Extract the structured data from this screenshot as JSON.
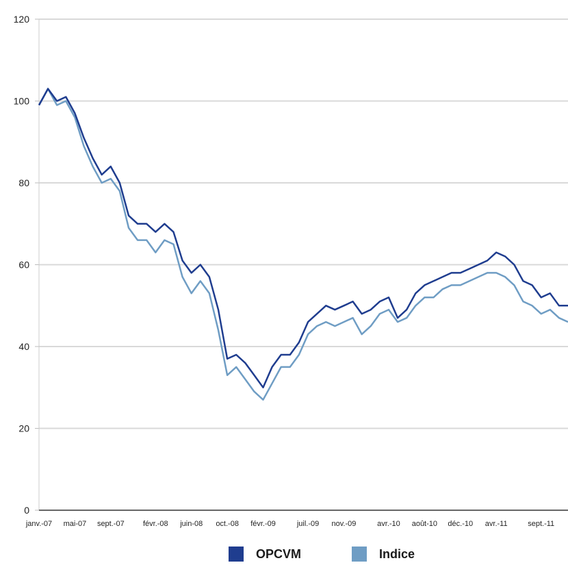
{
  "chart_data": {
    "type": "line",
    "title": "",
    "xlabel": "",
    "ylabel": "",
    "ylim": [
      0,
      120
    ],
    "yticks": [
      "0",
      "20",
      "40",
      "60",
      "80",
      "100",
      "120"
    ],
    "xticks": [
      "janv.-07",
      "mai-07",
      "sept.-07",
      "févr.-08",
      "juin-08",
      "oct.-08",
      "févr.-09",
      "juil.-09",
      "nov.-09",
      "avr.-10",
      "août-10",
      "déc.-10",
      "avr.-11",
      "sept.-11"
    ],
    "grid": true,
    "legend_position": "bottom",
    "x": [
      "janv.-07",
      "févr.-07",
      "mars-07",
      "avr.-07",
      "mai-07",
      "juin-07",
      "juil.-07",
      "août-07",
      "sept.-07",
      "oct.-07",
      "nov.-07",
      "déc.-07",
      "janv.-08",
      "févr.-08",
      "mars-08",
      "avr.-08",
      "mai-08",
      "juin-08",
      "juil.-08",
      "août-08",
      "sept.-08",
      "oct.-08",
      "nov.-08",
      "déc.-08",
      "janv.-09",
      "févr.-09",
      "mars-09",
      "avr.-09",
      "mai-09",
      "juin-09",
      "juil.-09",
      "août-09",
      "sept.-09",
      "oct.-09",
      "nov.-09",
      "déc.-09",
      "janv.-10",
      "févr.-10",
      "mars-10",
      "avr.-10",
      "mai-10",
      "juin-10",
      "juil.-10",
      "août-10",
      "sept.-10",
      "oct.-10",
      "nov.-10",
      "déc.-10",
      "janv.-11",
      "févr.-11",
      "mars-11",
      "avr.-11",
      "mai-11",
      "juin-11",
      "juil.-11",
      "août-11",
      "sept.-11",
      "oct.-11",
      "nov.-11",
      "déc.-11"
    ],
    "series": [
      {
        "name": "OPCVM",
        "color": "#1f3d8f",
        "values": [
          99,
          103,
          100,
          101,
          97,
          91,
          86,
          82,
          84,
          80,
          72,
          70,
          70,
          68,
          70,
          68,
          61,
          58,
          60,
          57,
          49,
          37,
          38,
          36,
          33,
          30,
          35,
          38,
          38,
          41,
          46,
          48,
          50,
          49,
          50,
          51,
          48,
          49,
          51,
          52,
          47,
          49,
          53,
          55,
          56,
          57,
          58,
          58,
          59,
          60,
          61,
          63,
          62,
          60,
          56,
          55,
          52,
          53,
          50,
          50
        ]
      },
      {
        "name": "Indice",
        "color": "#6f9dc4",
        "values": [
          99,
          103,
          99,
          100,
          96,
          89,
          84,
          80,
          81,
          78,
          69,
          66,
          66,
          63,
          66,
          65,
          57,
          53,
          56,
          53,
          44,
          33,
          35,
          32,
          29,
          27,
          31,
          35,
          35,
          38,
          43,
          45,
          46,
          45,
          46,
          47,
          43,
          45,
          48,
          49,
          46,
          47,
          50,
          52,
          52,
          54,
          55,
          55,
          56,
          57,
          58,
          58,
          57,
          55,
          51,
          50,
          48,
          49,
          47,
          46
        ]
      }
    ]
  }
}
